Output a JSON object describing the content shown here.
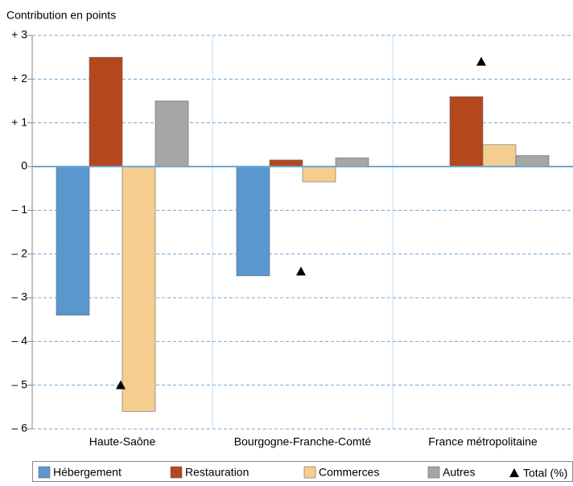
{
  "chart_data": {
    "type": "bar",
    "y_axis_label": "Contribution en points",
    "categories": [
      "Haute-Saône",
      "Bourgogne-Franche-Comté",
      "France métropolitaine"
    ],
    "series": [
      {
        "name": "Hébergement",
        "color": "#5b97cf",
        "values": [
          -3.4,
          -2.5,
          0
        ]
      },
      {
        "name": "Restauration",
        "color": "#b5471d",
        "values": [
          2.5,
          0.15,
          1.6
        ]
      },
      {
        "name": "Commerces",
        "color": "#f5cd8f",
        "values": [
          -5.6,
          -0.35,
          0.5
        ]
      },
      {
        "name": "Autres",
        "color": "#a6a6a6",
        "values": [
          1.5,
          0.2,
          0.25
        ]
      }
    ],
    "totals": {
      "name": "Total (%)",
      "color": "#000000",
      "values": [
        -5.0,
        -2.4,
        2.4
      ]
    },
    "ylim": [
      -6,
      3
    ],
    "yticks": [
      {
        "value": -6,
        "label": "– 6"
      },
      {
        "value": -5,
        "label": "– 5"
      },
      {
        "value": -4,
        "label": "– 4"
      },
      {
        "value": -3,
        "label": "– 3"
      },
      {
        "value": -2,
        "label": "– 2"
      },
      {
        "value": -1,
        "label": "– 1"
      },
      0,
      {
        "value": 1,
        "label": "+ 1"
      },
      {
        "value": 2,
        "label": "+ 2"
      },
      {
        "value": 3,
        "label": "+ 3"
      }
    ],
    "grid": true
  }
}
